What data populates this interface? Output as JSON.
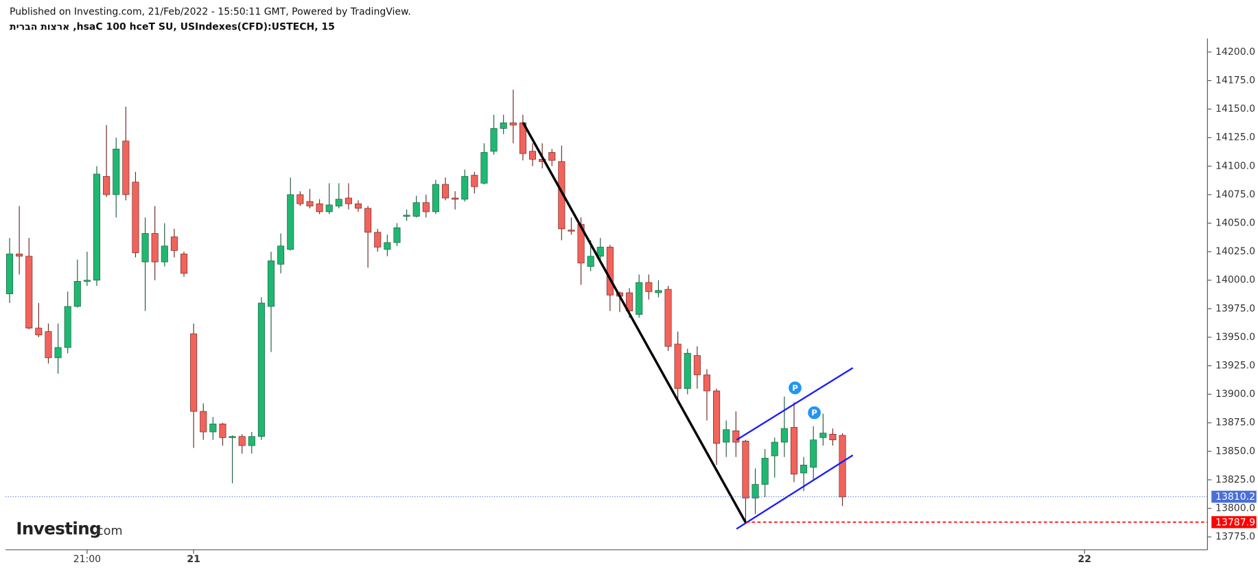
{
  "header": {
    "published": "Published on Investing.com, 21/Feb/2022 - 15:50:11 GMT, Powered by TradingView.",
    "symbol": "ארצות הברית ,hsaC 100 hceT SU, USIndexes(CFD):USTECH, 15"
  },
  "logo": {
    "brand": "Investing",
    "suffix": ".com"
  },
  "chart_data": {
    "type": "candlestick",
    "open": [
      13988,
      14023,
      14021,
      13958,
      13955,
      13932,
      13941,
      13977,
      13999,
      14000,
      14091,
      14075,
      14122,
      14086,
      14016,
      14041,
      14016,
      14038,
      14023,
      13953,
      13885,
      13867,
      13874,
      13862,
      13863,
      13855,
      13863,
      13977,
      14014,
      14027,
      14075,
      14069,
      14067,
      14060,
      14065,
      14072,
      14067,
      14063,
      14042,
      14027,
      14033,
      14056,
      14056,
      14068,
      14060,
      14084,
      14072,
      14071,
      14092,
      14085,
      14113,
      14133,
      14138,
      14138,
      14113,
      14106,
      14112,
      14104,
      14044,
      14049,
      14012,
      14021,
      14029,
      13989,
      13989,
      13970,
      13998,
      13989,
      13992,
      13944,
      13905,
      13934,
      13917,
      13903,
      13858,
      13868,
      13859,
      13809,
      13821,
      13846,
      13858,
      13871,
      13831,
      13836,
      13862,
      13865,
      13864
    ],
    "high": [
      14037,
      14065,
      14037,
      13980,
      13962,
      13962,
      13990,
      14018,
      14025,
      14100,
      14136,
      14125,
      14152,
      14095,
      14055,
      14065,
      14050,
      14045,
      14025,
      13962,
      13892,
      13880,
      13875,
      13864,
      13865,
      13867,
      13985,
      14025,
      14041,
      14090,
      14078,
      14080,
      14071,
      14085,
      14085,
      14085,
      14070,
      14065,
      14045,
      14040,
      14050,
      14062,
      14074,
      14075,
      14088,
      14090,
      14078,
      14097,
      14095,
      14120,
      14145,
      14145,
      14167,
      14145,
      14120,
      14120,
      14115,
      14118,
      14055,
      14055,
      14035,
      14037,
      14031,
      13990,
      13993,
      14005,
      14005,
      14000,
      13995,
      13955,
      13940,
      13942,
      13922,
      13905,
      13877,
      13885,
      13860,
      13835,
      13852,
      13862,
      13898,
      13893,
      13845,
      13872,
      13883,
      13870,
      13866
    ],
    "low": [
      13980,
      14005,
      13957,
      13950,
      13927,
      13918,
      13936,
      13976,
      13995,
      13995,
      14073,
      14055,
      14070,
      14020,
      13973,
      14000,
      14012,
      14020,
      14003,
      13853,
      13860,
      13860,
      13855,
      13822,
      13848,
      13848,
      13860,
      13937,
      14006,
      14026,
      14065,
      14063,
      14058,
      14058,
      14063,
      14062,
      14060,
      14011,
      14025,
      14021,
      14030,
      14052,
      14055,
      14055,
      14058,
      14070,
      14062,
      14069,
      14076,
      14084,
      14110,
      14128,
      14120,
      14105,
      14100,
      14098,
      14100,
      14035,
      14040,
      13996,
      14008,
      14018,
      13973,
      13972,
      13967,
      13967,
      13983,
      13985,
      13938,
      13892,
      13900,
      13905,
      13877,
      13838,
      13845,
      13845,
      13788,
      13795,
      13810,
      13827,
      13845,
      13823,
      13815,
      13825,
      13855,
      13855,
      13802
    ],
    "close": [
      14023,
      14021,
      13958,
      13952,
      13932,
      13941,
      13977,
      13999,
      14000,
      14093,
      14075,
      14115,
      14075,
      14024,
      14041,
      14016,
      14030,
      14026,
      14006,
      13885,
      13867,
      13874,
      13862,
      13863,
      13855,
      13863,
      13980,
      14017,
      14030,
      14075,
      14067,
      14065,
      14060,
      14066,
      14071,
      14067,
      14063,
      14042,
      14029,
      14033,
      14046,
      14057,
      14068,
      14060,
      14084,
      14072,
      14071,
      14091,
      14082,
      14112,
      14133,
      14138,
      14136,
      14111,
      14106,
      14104,
      14105,
      14045,
      14043,
      14015,
      14021,
      14029,
      13987,
      13986,
      13973,
      13998,
      13990,
      13991,
      13942,
      13905,
      13936,
      13917,
      13903,
      13857,
      13869,
      13858,
      13809,
      13821,
      13844,
      13858,
      13870,
      13830,
      13838,
      13860,
      13866,
      13860,
      13810
    ],
    "up_color": "#1fb872",
    "down_color": "#f2635b",
    "ylim": [
      13763.7,
      14211.9
    ],
    "yticks": [
      {
        "value": 13775,
        "label": "13775.0"
      },
      {
        "value": 13800,
        "label": "13800.0"
      },
      {
        "value": 13825,
        "label": "13825.0"
      },
      {
        "value": 13850,
        "label": "13850.0"
      },
      {
        "value": 13875,
        "label": "13875.0"
      },
      {
        "value": 13900,
        "label": "13900.0"
      },
      {
        "value": 13925,
        "label": "13925.0"
      },
      {
        "value": 13950,
        "label": "13950.0"
      },
      {
        "value": 13975,
        "label": "13975.0"
      },
      {
        "value": 14000,
        "label": "14000.0"
      },
      {
        "value": 14025,
        "label": "14025.0"
      },
      {
        "value": 14050,
        "label": "14050.0"
      },
      {
        "value": 14075,
        "label": "14075.0"
      },
      {
        "value": 14100,
        "label": "14100.0"
      },
      {
        "value": 14125,
        "label": "14125.0"
      },
      {
        "value": 14150,
        "label": "14150.0"
      },
      {
        "value": 14175,
        "label": "14175.0"
      },
      {
        "value": 14200,
        "label": "14200.0"
      }
    ],
    "xlim": [
      -0.414,
      123.69
    ],
    "xticks": [
      {
        "value": 8,
        "label": "21:00"
      },
      {
        "value": 19,
        "label": "21"
      },
      {
        "value": 111,
        "label": "22"
      }
    ],
    "price_lines": [
      {
        "value": 13810.2,
        "color": "#4a6fd8",
        "style": "dotted"
      },
      {
        "value": 13787.9,
        "color": "#ff0000",
        "style": "dashed"
      }
    ],
    "markers": [
      {
        "label": "P"
      },
      {
        "label": "P"
      }
    ]
  }
}
